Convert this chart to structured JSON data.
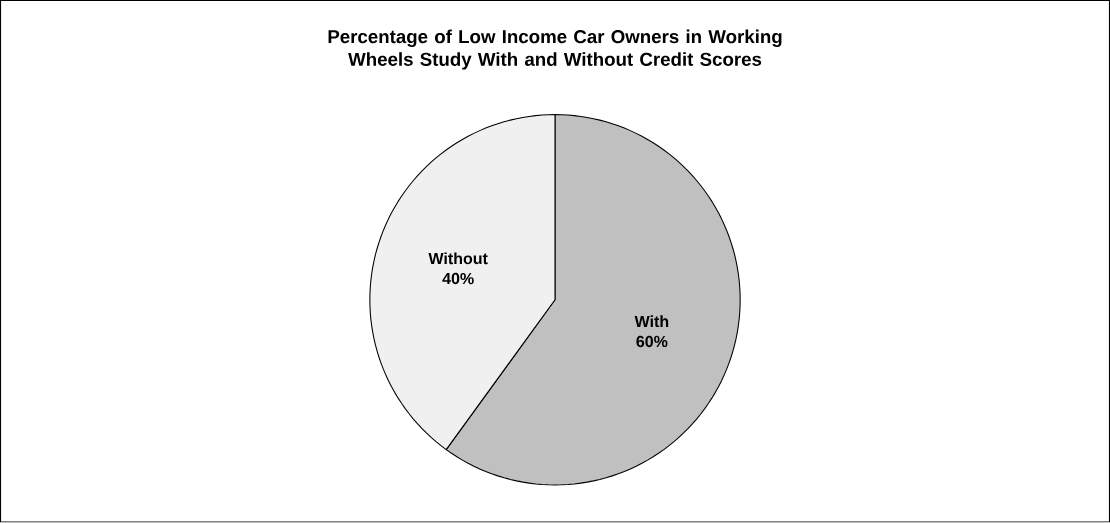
{
  "chart_data": {
    "type": "pie",
    "title": "Percentage of Low Income Car Owners in Working Wheels Study With and Without Credit Scores",
    "categories": [
      "With",
      "Without"
    ],
    "values": [
      60,
      40
    ],
    "colors": [
      "#c0c0c0",
      "#f0f0f0"
    ],
    "value_labels": [
      "60%",
      "40%"
    ]
  }
}
